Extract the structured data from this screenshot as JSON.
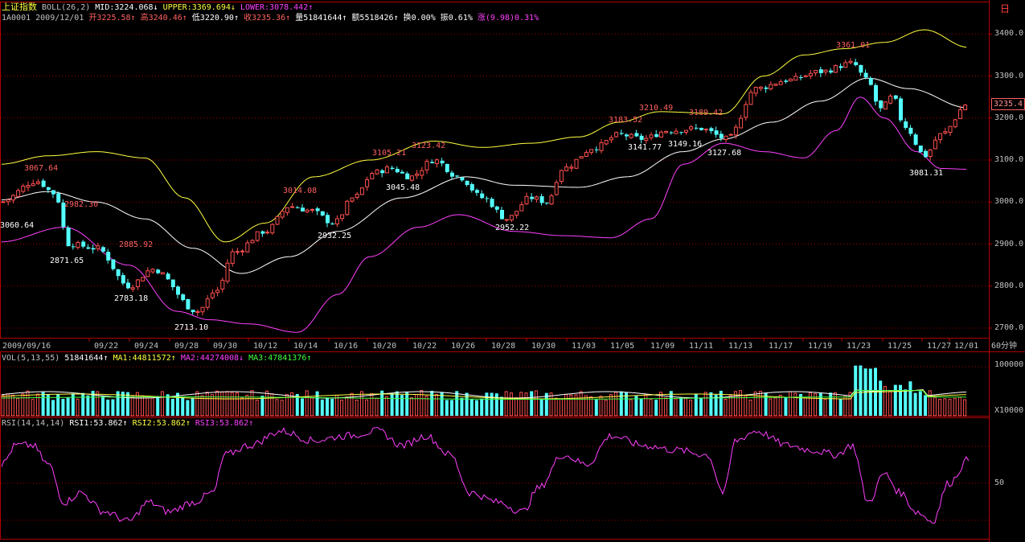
{
  "header": {
    "line1": {
      "index_name": "上证指数",
      "indicator": "BOLL(26,2)",
      "mid": "MID:3224.068↓",
      "upper": "UPPER:3369.694↓",
      "lower": "LOWER:3078.442↑"
    },
    "line2": {
      "code_date": "1A0001 2009/12/01",
      "open": "开3225.58↑",
      "high": "高3240.46↑",
      "low": "低3220.90↑",
      "close": "收3235.36↑",
      "volume": "量51841644↑",
      "amount": "额5518426↑",
      "turnover": "换0.00%",
      "amplitude": "振0.61%",
      "change": "涨(9.98)0.31%"
    }
  },
  "corner_label": "日",
  "current_price": "3235.4",
  "price_axis": [
    "3400.0",
    "3300.0",
    "3200.0",
    "3100.0",
    "3000.0",
    "2900.0",
    "2800.0",
    "2700.0"
  ],
  "date_axis": [
    "2009/09/16",
    "09/22",
    "09/24",
    "09/28",
    "09/30",
    "10/12",
    "10/14",
    "10/16",
    "10/20",
    "10/22",
    "10/26",
    "10/28",
    "10/30",
    "11/03",
    "11/05",
    "11/09",
    "11/11",
    "11/13",
    "11/17",
    "11/19",
    "11/23",
    "11/25",
    "11/27",
    "12/01"
  ],
  "period_label": "60分钟",
  "annotations": [
    "3067.64",
    "3060.64",
    "2982.30",
    "2871.65",
    "2885.92",
    "2783.18",
    "2713.10",
    "3014.08",
    "2932.25",
    "3105.21",
    "3045.48",
    "3123.42",
    "2952.22",
    "3183.52",
    "3210.49",
    "3141.77",
    "3149.16",
    "3189.42",
    "3127.68",
    "3361.01",
    "3081.31"
  ],
  "volume_panel": {
    "indicator": "VOL(5,13,55)",
    "value": "51841644↑",
    "ma1": "MA1:44811572↑",
    "ma2": "MA2:44274008↓",
    "ma3": "MA3:47841376↑",
    "axis_top": "100000",
    "axis_unit": "X10000"
  },
  "rsi_panel": {
    "indicator": "RSI(14,14,14)",
    "rsi1": "RSI1:53.862↑",
    "rsi2": "RSI2:53.862↑",
    "rsi3": "RSI3:53.862↑",
    "axis_mid": "50"
  },
  "colors": {
    "background": "#000000",
    "up_candle": "#ff5050",
    "down_candle": "#54ffff",
    "boll_mid": "#ffffff",
    "boll_upper": "#ffff40",
    "boll_lower": "#ff40ff",
    "panel_border": "#b00000",
    "grid": "#a00000",
    "rsi_line": "#ff40ff"
  }
}
